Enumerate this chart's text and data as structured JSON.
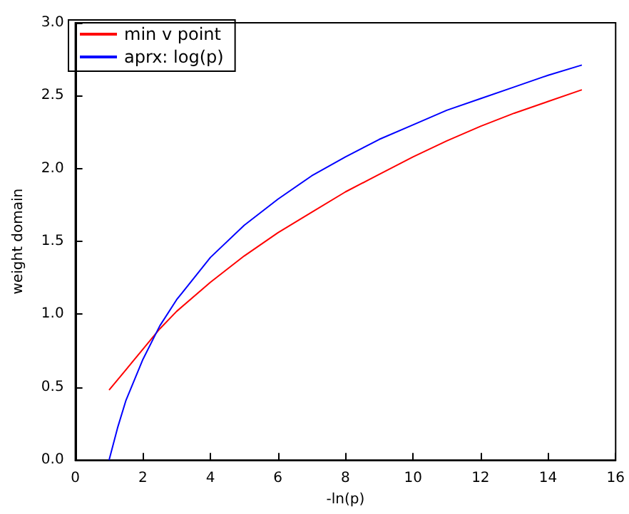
{
  "chart_data": {
    "type": "line",
    "xlabel": "-ln(p)",
    "ylabel": "weight domain",
    "xlim": [
      0,
      16
    ],
    "xticks": [
      0,
      2,
      4,
      6,
      8,
      10,
      12,
      14,
      16
    ],
    "ylim": [
      0,
      3.0
    ],
    "yticks": [
      {
        "value": 0,
        "label": "0.0"
      },
      {
        "value": 0.5,
        "label": "0.5"
      },
      {
        "value": 1,
        "label": "1.0"
      },
      {
        "value": 1.5,
        "label": "1.5"
      },
      {
        "value": 2,
        "label": "2.0"
      },
      {
        "value": 2.5,
        "label": "2.5"
      },
      {
        "value": 3,
        "label": "3.0"
      }
    ],
    "grid": false,
    "legend": "top left",
    "marker": "none",
    "line_style": "solid",
    "series": [
      {
        "name": "min v point",
        "color": "#ff0000",
        "x": [
          1,
          1.5,
          2,
          2.5,
          3,
          4,
          5,
          6,
          7,
          8,
          9,
          10,
          11,
          12,
          13,
          14,
          15
        ],
        "values": [
          0.48,
          0.62,
          0.76,
          0.9,
          1.02,
          1.22,
          1.4,
          1.56,
          1.7,
          1.84,
          1.96,
          2.08,
          2.19,
          2.29,
          2.38,
          2.46,
          2.54
        ]
      },
      {
        "name": "aprx: log(p)",
        "color": "#0000ff",
        "x": [
          1,
          1.25,
          1.5,
          2,
          2.5,
          3,
          4,
          5,
          6,
          7,
          8,
          9,
          10,
          11,
          12,
          13,
          14,
          15
        ],
        "values": [
          0,
          0.22,
          0.41,
          0.69,
          0.92,
          1.1,
          1.39,
          1.61,
          1.79,
          1.95,
          2.08,
          2.2,
          2.3,
          2.4,
          2.48,
          2.56,
          2.64,
          2.71
        ]
      }
    ]
  }
}
